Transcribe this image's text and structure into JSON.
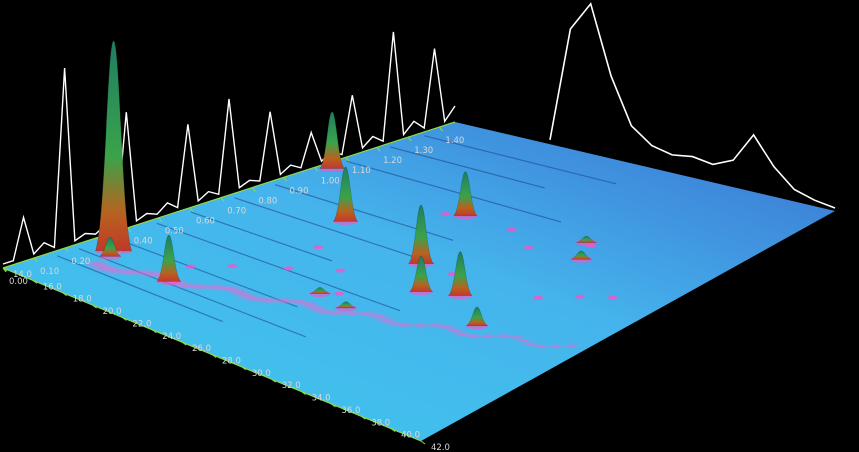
{
  "chart_data": {
    "type": "surface3d",
    "title": "",
    "xlabel": "",
    "ylabel": "",
    "x_axis": {
      "ticks": [
        "14.0",
        "16.0",
        "18.0",
        "20.0",
        "22.0",
        "24.0",
        "26.0",
        "28.0",
        "30.0",
        "32.0",
        "34.0",
        "36.0",
        "38.0",
        "40.0",
        "42.0"
      ],
      "range": [
        14.0,
        42.0
      ]
    },
    "y_axis": {
      "ticks": [
        "0.00",
        "0.10",
        "0.20",
        "0.30",
        "0.40",
        "0.50",
        "0.60",
        "0.70",
        "0.80",
        "0.90",
        "1.00",
        "1.10",
        "1.20",
        "1.30",
        "1.40"
      ],
      "range": [
        0.0,
        1.45
      ]
    },
    "peaks": [
      {
        "x": 15.8,
        "y": 0.27,
        "height": 1.0
      },
      {
        "x": 16.2,
        "y": 0.24,
        "height": 0.09
      },
      {
        "x": 14.8,
        "y": 1.02,
        "height": 0.27
      },
      {
        "x": 20.4,
        "y": 0.23,
        "height": 0.22
      },
      {
        "x": 21.0,
        "y": 0.78,
        "height": 0.26
      },
      {
        "x": 25.2,
        "y": 0.98,
        "height": 0.21
      },
      {
        "x": 28.0,
        "y": 0.7,
        "height": 0.28
      },
      {
        "x": 30.5,
        "y": 0.58,
        "height": 0.17
      },
      {
        "x": 32.4,
        "y": 0.62,
        "height": 0.21
      },
      {
        "x": 35.6,
        "y": 0.52,
        "height": 0.09
      },
      {
        "x": 34.3,
        "y": 0.94,
        "height": 0.04
      },
      {
        "x": 33.0,
        "y": 1.02,
        "height": 0.03
      },
      {
        "x": 29.0,
        "y": 0.4,
        "height": 0.03
      },
      {
        "x": 26.8,
        "y": 0.42,
        "height": 0.03
      }
    ],
    "first_dimension_trace": {
      "x": [
        14.0,
        15.0,
        16.0,
        17.2,
        18.2,
        19.0,
        20.2,
        21.6,
        22.8,
        24.0,
        25.3,
        26.6,
        28.0,
        29.4,
        30.8,
        32.2,
        33.4,
        34.6,
        36.0,
        37.4,
        38.8,
        40.2,
        41.6
      ],
      "intensity": [
        0.02,
        0.22,
        0.06,
        0.9,
        0.04,
        0.05,
        0.58,
        0.04,
        0.06,
        0.42,
        0.05,
        0.48,
        0.04,
        0.35,
        0.05,
        0.18,
        0.05,
        0.3,
        0.06,
        0.55,
        0.07,
        0.4,
        0.08
      ]
    },
    "second_dimension_trace": {
      "y": [
        0.0,
        0.1,
        0.2,
        0.3,
        0.4,
        0.5,
        0.6,
        0.7,
        0.8,
        0.9,
        1.0,
        1.1,
        1.2,
        1.3,
        1.4
      ],
      "intensity": [
        0.03,
        0.8,
        1.0,
        0.55,
        0.25,
        0.15,
        0.12,
        0.14,
        0.12,
        0.18,
        0.38,
        0.2,
        0.08,
        0.04,
        0.02
      ]
    },
    "grid": false,
    "legend": "none",
    "colors": {
      "background": "#000000",
      "floor_near": "#3fc8ee",
      "floor_far": "#3a6fd0",
      "ridge": "#ff4fc8",
      "peak_base": "#c0392b",
      "peak_mid": "#3aa34a",
      "peak_top": "#2e8b6e",
      "axis": "#8fd94a",
      "trace": "#ffffff",
      "tick_label": "#d8d8d8"
    }
  }
}
